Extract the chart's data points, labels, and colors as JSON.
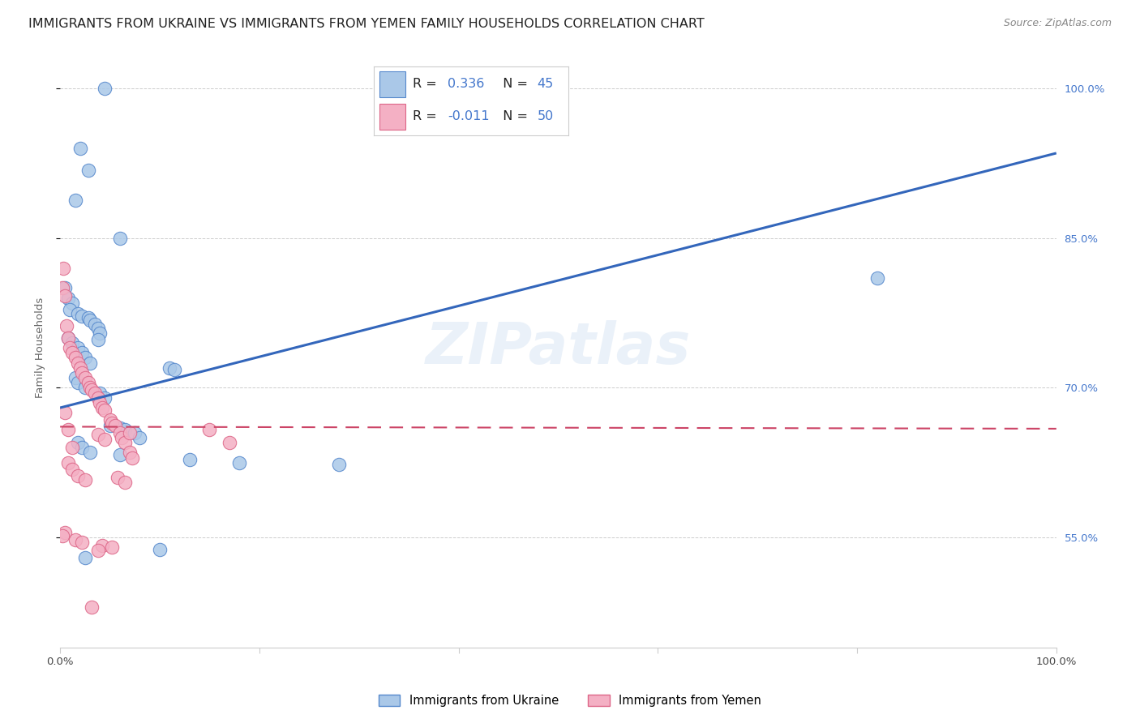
{
  "title": "IMMIGRANTS FROM UKRAINE VS IMMIGRANTS FROM YEMEN FAMILY HOUSEHOLDS CORRELATION CHART",
  "source": "Source: ZipAtlas.com",
  "ylabel": "Family Households",
  "watermark": "ZIPatlas",
  "xmin": 0.0,
  "xmax": 1.0,
  "ymin": 0.44,
  "ymax": 1.04,
  "yticks": [
    0.55,
    0.7,
    0.85,
    1.0
  ],
  "ytick_labels": [
    "55.0%",
    "70.0%",
    "85.0%",
    "100.0%"
  ],
  "xtick_vals": [
    0.0,
    0.2,
    0.4,
    0.6,
    0.8,
    1.0
  ],
  "xtick_labels": [
    "0.0%",
    "",
    "",
    "",
    "",
    "100.0%"
  ],
  "ukraine_scatter_color": "#aac8e8",
  "ukraine_scatter_edge": "#5588cc",
  "yemen_scatter_color": "#f4b0c4",
  "yemen_scatter_edge": "#dd6688",
  "ukraine_line_color": "#3366bb",
  "yemen_line_color": "#cc4466",
  "R_ukraine": 0.336,
  "N_ukraine": 45,
  "R_yemen": -0.011,
  "N_yemen": 50,
  "legend_text_color": "#333333",
  "legend_value_color": "#4477cc",
  "title_fontsize": 11.5,
  "axis_label_fontsize": 9.5,
  "tick_fontsize": 9.5,
  "legend_fontsize": 12,
  "source_fontsize": 9,
  "watermark_fontsize": 52,
  "background_color": "#ffffff",
  "grid_color": "#cccccc",
  "right_tick_color": "#4477cc",
  "ukraine_x": [
    0.045,
    0.02,
    0.028,
    0.015,
    0.06,
    0.005,
    0.008,
    0.012,
    0.01,
    0.018,
    0.022,
    0.028,
    0.03,
    0.035,
    0.038,
    0.04,
    0.008,
    0.012,
    0.018,
    0.022,
    0.025,
    0.03,
    0.038,
    0.11,
    0.115,
    0.015,
    0.018,
    0.025,
    0.04,
    0.045,
    0.05,
    0.06,
    0.065,
    0.075,
    0.08,
    0.018,
    0.022,
    0.03,
    0.06,
    0.13,
    0.18,
    0.82,
    0.28,
    0.025,
    0.1
  ],
  "ukraine_y": [
    1.0,
    0.94,
    0.918,
    0.888,
    0.85,
    0.8,
    0.79,
    0.785,
    0.778,
    0.774,
    0.772,
    0.77,
    0.768,
    0.764,
    0.76,
    0.755,
    0.75,
    0.745,
    0.74,
    0.735,
    0.73,
    0.725,
    0.748,
    0.72,
    0.718,
    0.71,
    0.705,
    0.7,
    0.695,
    0.69,
    0.662,
    0.66,
    0.658,
    0.655,
    0.65,
    0.645,
    0.64,
    0.635,
    0.633,
    0.628,
    0.625,
    0.81,
    0.623,
    0.53,
    0.538
  ],
  "yemen_x": [
    0.002,
    0.003,
    0.005,
    0.006,
    0.008,
    0.01,
    0.012,
    0.015,
    0.018,
    0.02,
    0.022,
    0.025,
    0.028,
    0.03,
    0.032,
    0.035,
    0.038,
    0.04,
    0.042,
    0.045,
    0.005,
    0.05,
    0.052,
    0.055,
    0.008,
    0.06,
    0.062,
    0.065,
    0.012,
    0.07,
    0.072,
    0.008,
    0.012,
    0.018,
    0.025,
    0.15,
    0.038,
    0.045,
    0.17,
    0.058,
    0.065,
    0.07,
    0.005,
    0.002,
    0.015,
    0.022,
    0.032,
    0.042,
    0.052,
    0.038
  ],
  "yemen_y": [
    0.8,
    0.82,
    0.792,
    0.762,
    0.75,
    0.74,
    0.735,
    0.73,
    0.725,
    0.72,
    0.715,
    0.71,
    0.705,
    0.7,
    0.698,
    0.695,
    0.69,
    0.685,
    0.68,
    0.678,
    0.675,
    0.668,
    0.665,
    0.662,
    0.658,
    0.655,
    0.65,
    0.645,
    0.64,
    0.635,
    0.63,
    0.625,
    0.618,
    0.612,
    0.608,
    0.658,
    0.653,
    0.648,
    0.645,
    0.61,
    0.605,
    0.655,
    0.555,
    0.552,
    0.548,
    0.545,
    0.48,
    0.542,
    0.54,
    0.537
  ]
}
